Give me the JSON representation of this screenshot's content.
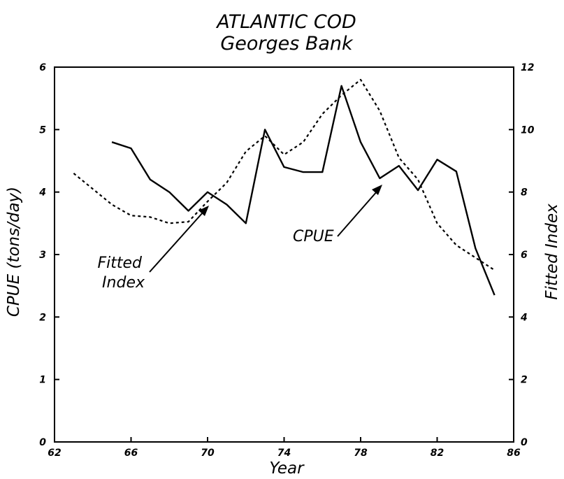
{
  "chart_data": {
    "type": "line",
    "title": "ATLANTIC COD",
    "subtitle": "Georges Bank",
    "xlabel": "Year",
    "ylabel": "CPUE (tons/day)",
    "y2label": "Fitted Index",
    "xlim": [
      62,
      86
    ],
    "ylim": [
      0,
      6
    ],
    "y2lim": [
      0,
      12
    ],
    "xticks": [
      "62",
      "66",
      "70",
      "74",
      "78",
      "82",
      "86"
    ],
    "yticks": [
      "0",
      "1",
      "2",
      "3",
      "4",
      "5",
      "6"
    ],
    "y2ticks": [
      "0",
      "2",
      "4",
      "6",
      "8",
      "10",
      "12"
    ],
    "grid": false,
    "series": [
      {
        "name": "CPUE",
        "axis": "left",
        "style": "solid",
        "color": "#000000",
        "x": [
          65,
          66,
          67,
          68,
          69,
          70,
          71,
          72,
          73,
          74,
          75,
          76,
          77,
          78,
          79,
          80,
          81,
          82,
          83,
          84,
          85
        ],
        "y": [
          4.8,
          4.7,
          4.2,
          4.0,
          3.7,
          4.0,
          3.8,
          3.5,
          5.0,
          4.4,
          4.32,
          4.32,
          5.7,
          4.8,
          4.22,
          4.42,
          4.03,
          4.52,
          4.33,
          3.1,
          2.35
        ]
      },
      {
        "name": "Fitted Index",
        "axis": "right",
        "style": "dashed",
        "color": "#000000",
        "x": [
          63,
          64,
          65,
          66,
          67,
          68,
          69,
          70,
          71,
          72,
          73,
          74,
          75,
          76,
          77,
          78,
          79,
          80,
          81,
          82,
          83,
          84,
          85
        ],
        "y": [
          8.6,
          8.1,
          7.6,
          7.25,
          7.2,
          7.0,
          7.05,
          7.7,
          8.3,
          9.3,
          9.8,
          9.2,
          9.6,
          10.5,
          11.1,
          11.6,
          10.6,
          9.1,
          8.4,
          7.0,
          6.3,
          5.9,
          5.5
        ]
      }
    ],
    "annotations": [
      {
        "text": [
          "Fitted",
          "Index"
        ],
        "points_to": "Fitted Index"
      },
      {
        "text": [
          "CPUE"
        ],
        "points_to": "CPUE"
      }
    ]
  }
}
